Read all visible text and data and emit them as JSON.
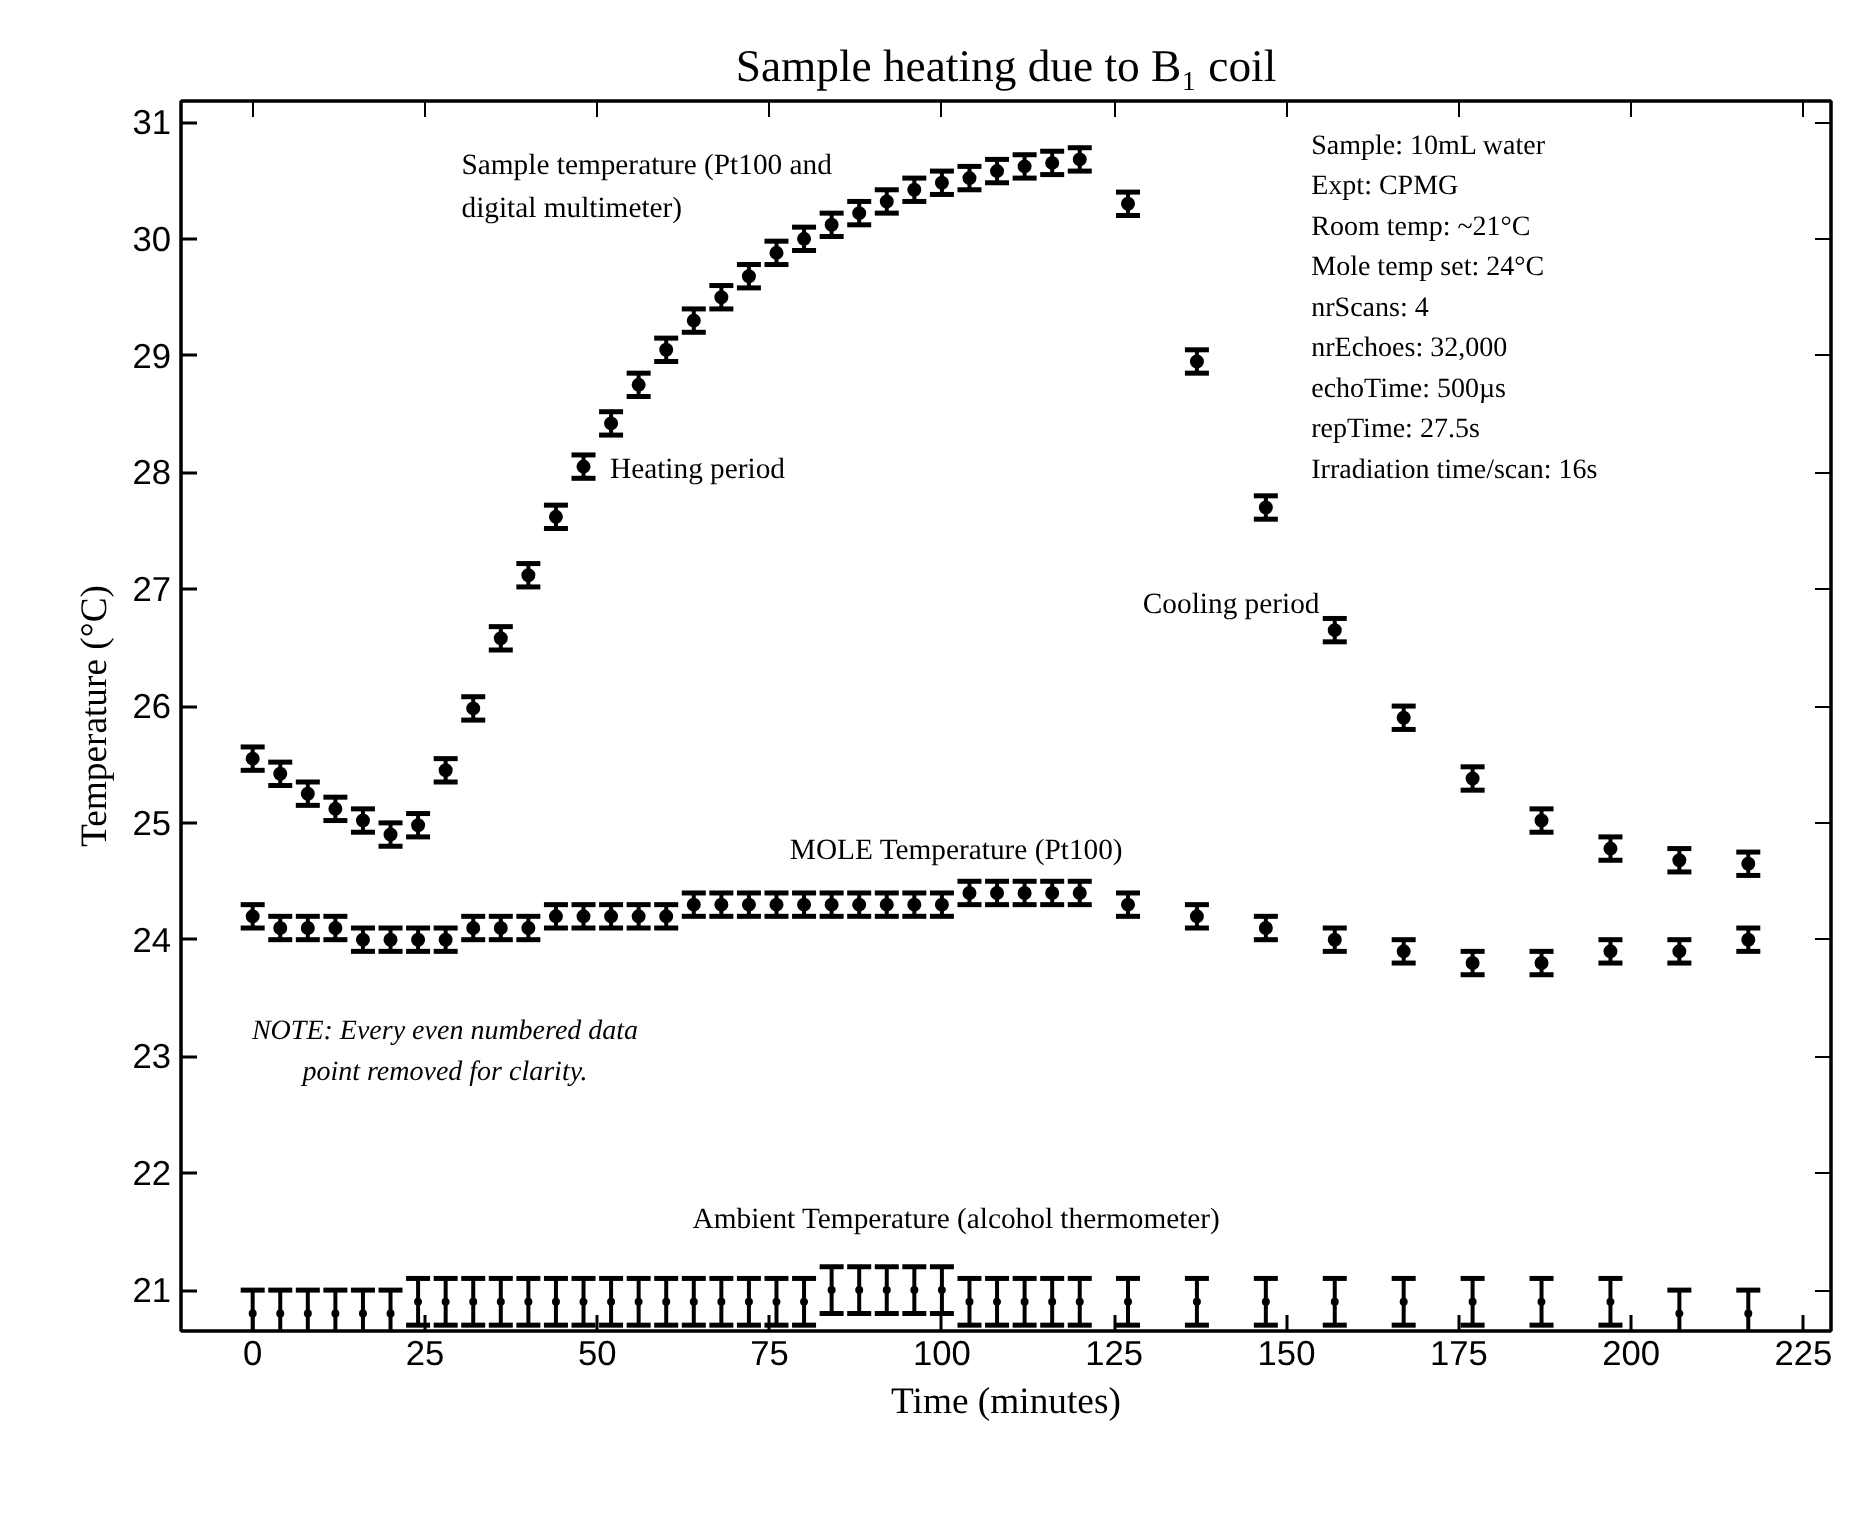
{
  "chart_data": {
    "type": "scatter",
    "title": "Sample heating due to B₁ coil",
    "xlabel": "Time (minutes)",
    "ylabel": "Temperature (°C)",
    "xlim": [
      -10.4,
      229
    ],
    "ylim": [
      20.65,
      31.18
    ],
    "xticks": [
      0,
      25,
      50,
      75,
      100,
      125,
      150,
      175,
      200,
      225
    ],
    "yticks": [
      21,
      22,
      23,
      24,
      25,
      26,
      27,
      28,
      29,
      30,
      31
    ],
    "grid": false,
    "x": [
      0,
      4,
      8,
      12,
      16,
      20,
      24,
      28,
      32,
      36,
      40,
      44,
      48,
      52,
      56,
      60,
      64,
      68,
      72,
      76,
      80,
      84,
      88,
      92,
      96,
      100,
      104,
      108,
      112,
      116,
      120,
      127,
      137,
      147,
      157,
      167,
      177,
      187,
      197,
      207,
      217
    ],
    "series": [
      {
        "color": "#000000",
        "marker": "circle",
        "values": [
          25.55,
          25.42,
          25.25,
          25.12,
          25.02,
          24.9,
          24.98,
          25.45,
          25.98,
          26.58,
          27.12,
          27.62,
          28.05,
          28.42,
          28.75,
          29.05,
          29.3,
          29.5,
          29.68,
          29.88,
          30.0,
          30.12,
          30.22,
          30.32,
          30.42,
          30.48,
          30.52,
          30.58,
          30.62,
          30.65,
          30.68,
          30.3,
          28.95,
          27.7,
          26.65,
          25.9,
          25.38,
          25.02,
          24.78,
          24.68,
          24.65
        ],
        "errors": [
          0.1,
          0.1,
          0.1,
          0.1,
          0.1,
          0.1,
          0.1,
          0.1,
          0.1,
          0.1,
          0.1,
          0.1,
          0.1,
          0.1,
          0.1,
          0.1,
          0.1,
          0.1,
          0.1,
          0.1,
          0.1,
          0.1,
          0.1,
          0.1,
          0.1,
          0.1,
          0.1,
          0.1,
          0.1,
          0.1,
          0.1,
          0.1,
          0.1,
          0.1,
          0.1,
          0.1,
          0.1,
          0.1,
          0.1,
          0.1,
          0.1
        ]
      },
      {
        "color": "#000000",
        "marker": "circle",
        "values": [
          24.2,
          24.1,
          24.1,
          24.1,
          24.0,
          24.0,
          24.0,
          24.0,
          24.1,
          24.1,
          24.1,
          24.2,
          24.2,
          24.2,
          24.2,
          24.2,
          24.3,
          24.3,
          24.3,
          24.3,
          24.3,
          24.3,
          24.3,
          24.3,
          24.3,
          24.3,
          24.4,
          24.4,
          24.4,
          24.4,
          24.4,
          24.3,
          24.2,
          24.1,
          24.0,
          23.9,
          23.8,
          23.8,
          23.9,
          23.9,
          24.0
        ],
        "errors": [
          0.1,
          0.1,
          0.1,
          0.1,
          0.1,
          0.1,
          0.1,
          0.1,
          0.1,
          0.1,
          0.1,
          0.1,
          0.1,
          0.1,
          0.1,
          0.1,
          0.1,
          0.1,
          0.1,
          0.1,
          0.1,
          0.1,
          0.1,
          0.1,
          0.1,
          0.1,
          0.1,
          0.1,
          0.1,
          0.1,
          0.1,
          0.1,
          0.1,
          0.1,
          0.1,
          0.1,
          0.1,
          0.1,
          0.1,
          0.1,
          0.1
        ]
      },
      {
        "color": "#000000",
        "marker": "circle",
        "values": [
          20.8,
          20.8,
          20.8,
          20.8,
          20.8,
          20.8,
          20.9,
          20.9,
          20.9,
          20.9,
          20.9,
          20.9,
          20.9,
          20.9,
          20.9,
          20.9,
          20.9,
          20.9,
          20.9,
          20.9,
          20.9,
          21.0,
          21.0,
          21.0,
          21.0,
          21.0,
          20.9,
          20.9,
          20.9,
          20.9,
          20.9,
          20.9,
          20.9,
          20.9,
          20.9,
          20.9,
          20.9,
          20.9,
          20.9,
          20.8,
          20.8
        ],
        "errors": [
          0.2,
          0.2,
          0.2,
          0.2,
          0.2,
          0.2,
          0.2,
          0.2,
          0.2,
          0.2,
          0.2,
          0.2,
          0.2,
          0.2,
          0.2,
          0.2,
          0.2,
          0.2,
          0.2,
          0.2,
          0.2,
          0.2,
          0.2,
          0.2,
          0.2,
          0.2,
          0.2,
          0.2,
          0.2,
          0.2,
          0.2,
          0.2,
          0.2,
          0.2,
          0.2,
          0.2,
          0.2,
          0.2,
          0.2,
          0.2,
          0.2
        ]
      }
    ],
    "annotations": [
      "Sample temperature (Pt100 and\ndigital multimeter)",
      "Heating period",
      "Cooling period",
      "MOLE Temperature (Pt100)",
      "Ambient Temperature (alcohol thermometer)",
      "Sample: 10mL water\nExpt: CPMG\nRoom temp: ~21°C\nMole temp set: 24°C\nnrScans: 4\nnrEchoes: 32,000\nechoTime: 500µs\nrepTime: 27.5s\nIrradiation time/scan: 16s",
      "NOTE: Every even numbered data\npoint removed for clarity."
    ]
  }
}
